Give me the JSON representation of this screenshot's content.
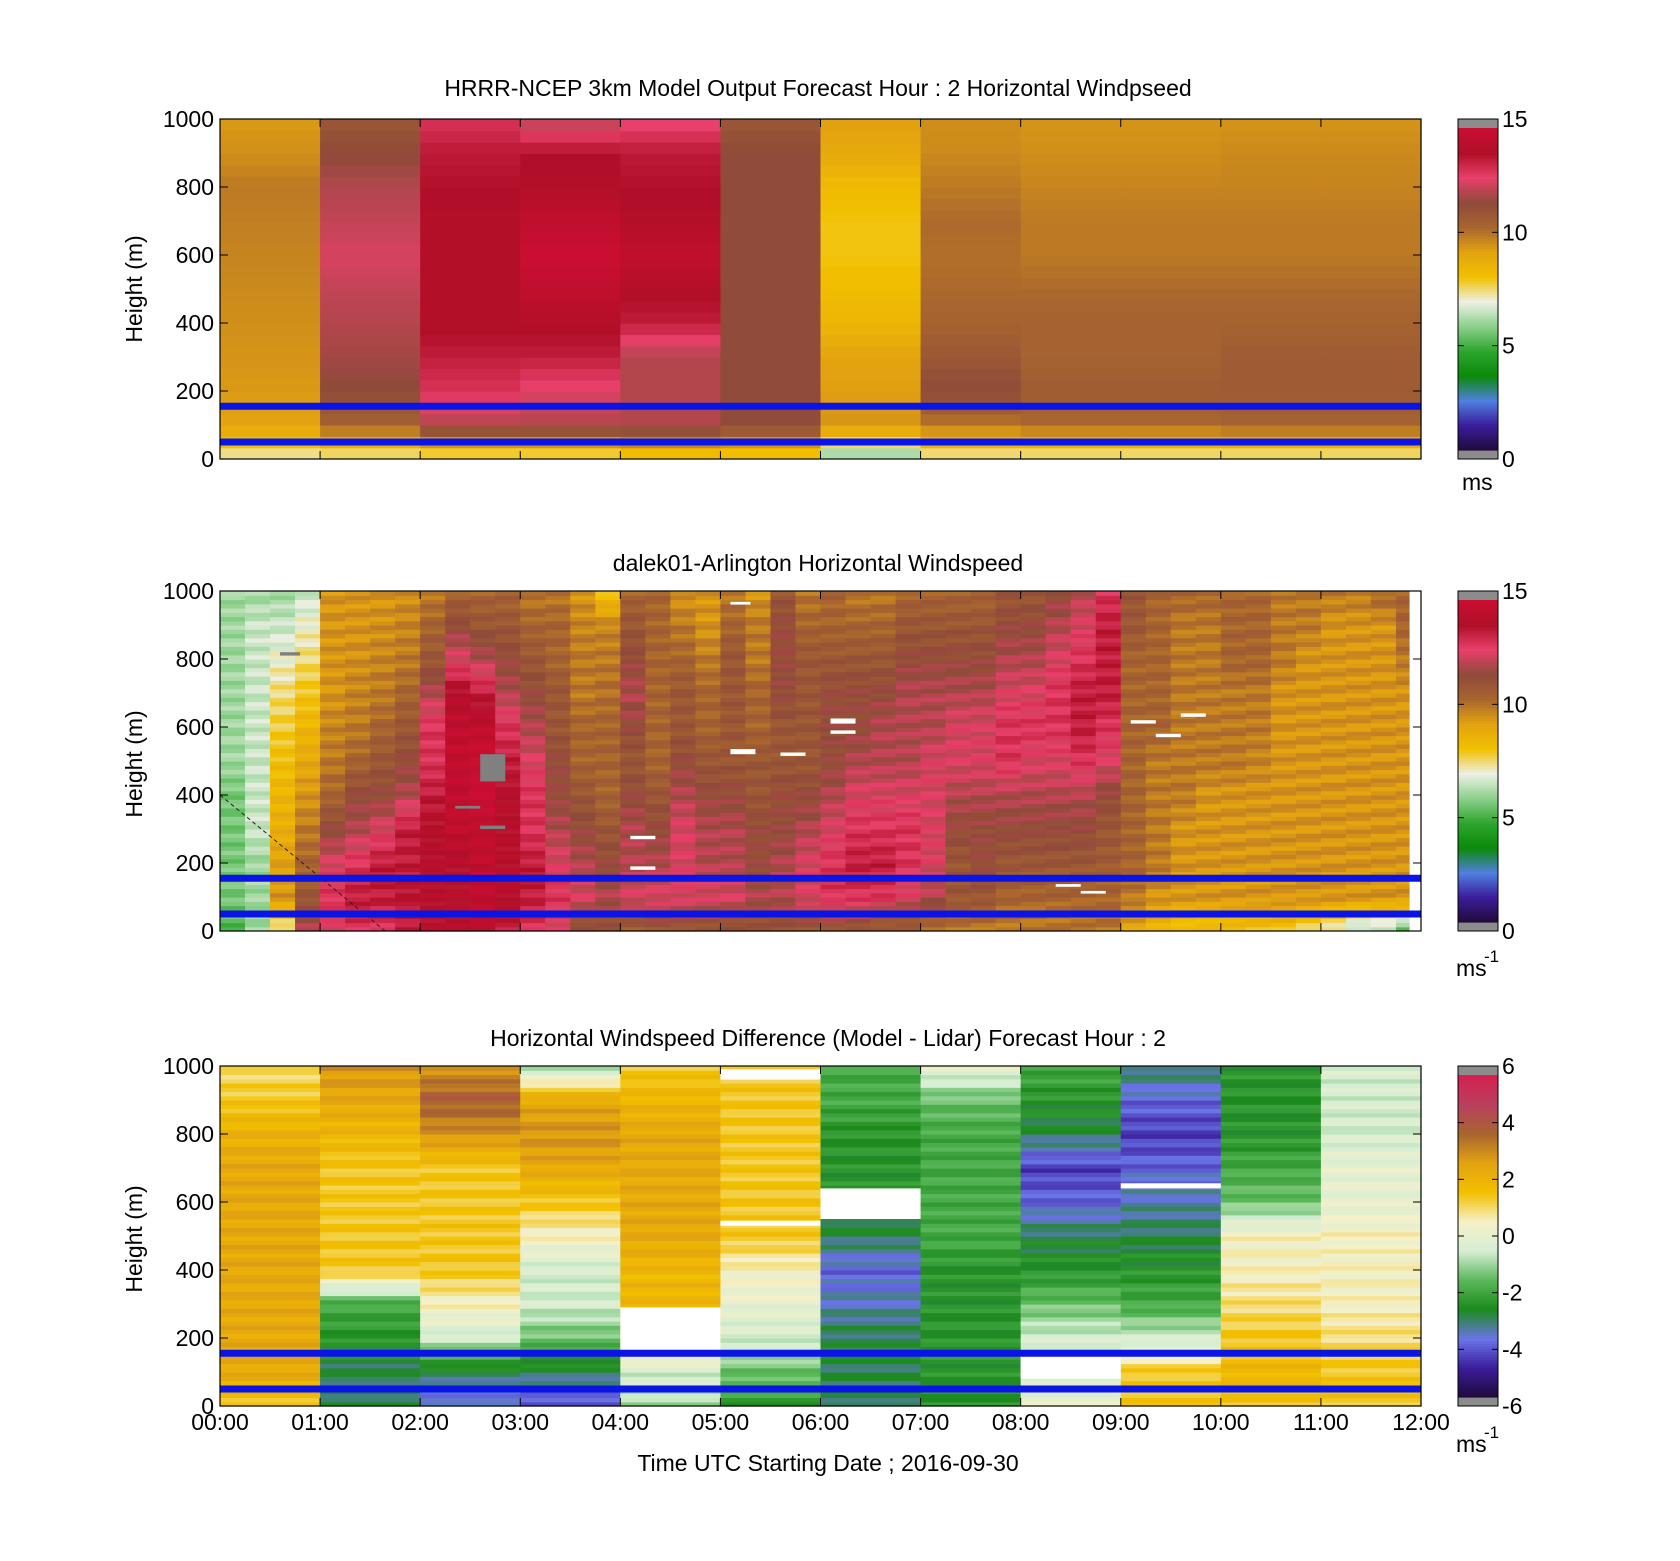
{
  "figure": {
    "xlabel": "Time UTC  Starting Date ; 2016-09-30",
    "x_tick_labels": [
      "00:00",
      "01:00",
      "02:00",
      "03:00",
      "04:00",
      "05:00",
      "06:00",
      "07:00",
      "08:00",
      "09:00",
      "10:00",
      "11:00",
      "12:00"
    ],
    "colors": {
      "reference_line": "#0a14e6",
      "missing_data": "#808080",
      "windspeed_scale": [
        "#1f0a3a",
        "#3b1c9a",
        "#4f7fe0",
        "#0a8a0a",
        "#2da52d",
        "#8cd08c",
        "#ecf0e4",
        "#f2c000",
        "#e3a310",
        "#a8652f",
        "#8f4a3a",
        "#e8406a",
        "#b00f28",
        "#cc0e33"
      ],
      "difference_scale": [
        "#1f0a3a",
        "#3b1c9a",
        "#6a75e8",
        "#1c8a1c",
        "#5ab85a",
        "#d6eed4",
        "#f6f0c8",
        "#f2c000",
        "#e3a310",
        "#a8652f",
        "#b8405e",
        "#d62050"
      ]
    }
  },
  "chart_data": [
    {
      "type": "heatmap",
      "title": "HRRR-NCEP 3km Model Output   Forecast Hour : 2 Horizontal Windpseed",
      "ylabel": "Height (m)",
      "ylim": [
        0,
        1000
      ],
      "xlim_hours": [
        0,
        12
      ],
      "y_ticks": [
        0,
        200,
        400,
        600,
        800,
        1000
      ],
      "colorbar": {
        "min": 0,
        "max": 15,
        "ticks": [
          0,
          5,
          10,
          15
        ],
        "unit": "ms",
        "unit_sup": ""
      },
      "reference_lines_m": [
        50,
        155
      ],
      "time_step_hours": 1,
      "heights_m": [
        0,
        100,
        200,
        300,
        400,
        500,
        600,
        700,
        800,
        900,
        1000
      ],
      "values_by_hour": [
        [
          7,
          9.2,
          9.4,
          9.5,
          9.6,
          9.7,
          9.8,
          9.9,
          10,
          9.6,
          9.4
        ],
        [
          7,
          10.5,
          11.5,
          11.8,
          12,
          12.2,
          12.5,
          12.2,
          12,
          11.5,
          11
        ],
        [
          7,
          12,
          13,
          13.5,
          14,
          14,
          14,
          14,
          13.8,
          13.6,
          13
        ],
        [
          7,
          12,
          12.5,
          13.5,
          14,
          14.5,
          15,
          14.5,
          14,
          13.8,
          12
        ],
        [
          7.5,
          12,
          12,
          12,
          13.5,
          14,
          14.5,
          14,
          13.8,
          13.6,
          12.5
        ],
        [
          7.5,
          11.5,
          11.5,
          11.5,
          11.5,
          11.5,
          11.5,
          11.5,
          11.5,
          11.5,
          11
        ],
        [
          5.5,
          9.5,
          9.3,
          9.2,
          8.5,
          8.2,
          8,
          8,
          8.3,
          9,
          9.3
        ],
        [
          7,
          10,
          11.5,
          11,
          10.5,
          10.3,
          10.2,
          10.3,
          10,
          9.7,
          9.6
        ],
        [
          7,
          10.3,
          10.8,
          10.5,
          10.5,
          10.3,
          10,
          10,
          9.8,
          9.6,
          9.5
        ],
        [
          7,
          10.3,
          10.8,
          10.5,
          10.5,
          10.3,
          10,
          10,
          9.8,
          9.6,
          9.5
        ],
        [
          7,
          10.5,
          10.8,
          10.8,
          10.5,
          10.3,
          10,
          10,
          9.8,
          9.7,
          9.5
        ],
        [
          7,
          10.5,
          10.8,
          10.8,
          10.5,
          10.3,
          10,
          10,
          9.8,
          9.7,
          9.5
        ]
      ]
    },
    {
      "type": "heatmap",
      "title": "dalek01-Arlington  Horizontal Windspeed",
      "ylabel": "Height (m)",
      "ylim": [
        0,
        1000
      ],
      "xlim_hours": [
        0,
        12
      ],
      "y_ticks": [
        0,
        200,
        400,
        600,
        800,
        1000
      ],
      "colorbar": {
        "min": 0,
        "max": 15,
        "ticks": [
          0,
          5,
          10,
          15
        ],
        "unit": "ms",
        "unit_sup": "-1"
      },
      "reference_lines_m": [
        50,
        155
      ],
      "time_step_hours": 0.25,
      "data_end_hour": 11.88,
      "heights_m": [
        0,
        100,
        200,
        300,
        400,
        500,
        600,
        700,
        800,
        900,
        1000
      ],
      "values_by_quarter_hour": [
        [
          5,
          5.5,
          5.5,
          5.5,
          5.5,
          6,
          6,
          6,
          6,
          6,
          6
        ],
        [
          6,
          6,
          6,
          6.5,
          6.5,
          6.5,
          6.5,
          6.5,
          6.5,
          6.5,
          6
        ],
        [
          7,
          9.5,
          9.2,
          8.8,
          8.5,
          8.2,
          7.8,
          7.5,
          7,
          6.5,
          6
        ],
        [
          12,
          11,
          10.5,
          10,
          9.5,
          9,
          8.5,
          8,
          7.5,
          7,
          6.5
        ],
        [
          12.5,
          13,
          12.5,
          11.5,
          10.5,
          10,
          9.8,
          9.5,
          9.5,
          9.5,
          9.5
        ],
        [
          13,
          13.5,
          13,
          12,
          11.5,
          10.5,
          10,
          9.8,
          9.6,
          9.5,
          9.5
        ],
        [
          13,
          13.5,
          13.5,
          12.5,
          11.5,
          11,
          10.5,
          10,
          9.8,
          9.6,
          9.5
        ],
        [
          13.5,
          13.8,
          13.5,
          13.5,
          12,
          11.5,
          11,
          10.5,
          10,
          9.8,
          9.6
        ],
        [
          14,
          14,
          14,
          14,
          13.5,
          13,
          13,
          12,
          11,
          10.5,
          10
        ],
        [
          14,
          14,
          14,
          14.5,
          14.5,
          14.5,
          14.5,
          14,
          12.5,
          11.5,
          10.5
        ],
        [
          14,
          14.5,
          14.5,
          14.5,
          15,
          15,
          14.5,
          13.5,
          12,
          11,
          10.5
        ],
        [
          13.5,
          14,
          14,
          14,
          14,
          13.5,
          13,
          12,
          11.5,
          11,
          10.5
        ],
        [
          13,
          13.5,
          13.5,
          13,
          13,
          12.5,
          12,
          11.5,
          11,
          10.5,
          10
        ],
        [
          12.5,
          13,
          12.5,
          12,
          11.5,
          11.5,
          11,
          11,
          10.5,
          10.5,
          10
        ],
        [
          11,
          12.5,
          12,
          11.5,
          11,
          10.5,
          10.5,
          10,
          10,
          9.8,
          9.5
        ],
        [
          11,
          12,
          11.5,
          11,
          10.5,
          10.5,
          10.5,
          10.2,
          10,
          9.8,
          8
        ],
        [
          10.5,
          12.5,
          12,
          12,
          11.5,
          11,
          11.5,
          12,
          11.5,
          11,
          10.5
        ],
        [
          11,
          12.5,
          12,
          11.5,
          11,
          10.5,
          10.5,
          10.5,
          10.5,
          10.5,
          10.5
        ],
        [
          11,
          12.5,
          12.5,
          12.5,
          12,
          11.5,
          11,
          11,
          10.5,
          10,
          9.5
        ],
        [
          11,
          12.5,
          12,
          12,
          11.5,
          11,
          10.5,
          10.5,
          10,
          9.5,
          9.5
        ],
        [
          11,
          12.5,
          12,
          12,
          11.5,
          11,
          11,
          11,
          11,
          10.5,
          10
        ],
        [
          11,
          12,
          11.5,
          11.5,
          11,
          11,
          10.5,
          10.5,
          10,
          10,
          9.5
        ],
        [
          11,
          12,
          12,
          11.5,
          11.5,
          11,
          11,
          11.5,
          11.5,
          11.5,
          11
        ],
        [
          11,
          12.5,
          12.5,
          12,
          11.5,
          11,
          11,
          11,
          11,
          10.5,
          10
        ],
        [
          11,
          13,
          13,
          12.5,
          12,
          11.5,
          11.5,
          11.5,
          11,
          10.5,
          10.5
        ],
        [
          11,
          13,
          13.5,
          13,
          12.5,
          12,
          11.5,
          11.5,
          11,
          10.5,
          10
        ],
        [
          10.5,
          13,
          13.5,
          13,
          12.5,
          12,
          12,
          11.5,
          11,
          10.5,
          10
        ],
        [
          10.5,
          12.5,
          13,
          13,
          12.5,
          12,
          12,
          12,
          11.5,
          11,
          10.5
        ],
        [
          10,
          12,
          12.5,
          12.5,
          12.5,
          12.5,
          12,
          12,
          11.5,
          11,
          10.5
        ],
        [
          10,
          11,
          11,
          11.5,
          12,
          12.5,
          12.5,
          12,
          11.5,
          11,
          10.5
        ],
        [
          10,
          11,
          11.5,
          11.5,
          12,
          12.5,
          12.5,
          12,
          11.5,
          11,
          10.5
        ],
        [
          10,
          10.5,
          11,
          11.5,
          12,
          13,
          13,
          12.5,
          12,
          11.5,
          11
        ],
        [
          10,
          10.5,
          11,
          11.5,
          12,
          12.5,
          13,
          12.5,
          12,
          11.5,
          11
        ],
        [
          10,
          10.5,
          11,
          11.5,
          12,
          12.5,
          13,
          13,
          12.5,
          12,
          11.5
        ],
        [
          10,
          10.5,
          11,
          11.5,
          12,
          13,
          13.5,
          13.5,
          13,
          12.5,
          12
        ],
        [
          10,
          10.5,
          10.8,
          11,
          11.5,
          12.5,
          13,
          13.5,
          13.5,
          13.5,
          13
        ],
        [
          9,
          10,
          10.5,
          10.5,
          10.5,
          10.5,
          10.5,
          10.5,
          10.5,
          11,
          11
        ],
        [
          8.5,
          9.5,
          10,
          10,
          10,
          10,
          10.5,
          10.5,
          10.5,
          10.5,
          10.5
        ],
        [
          8,
          9.5,
          9.5,
          9.5,
          10,
          10,
          10,
          10,
          10,
          10,
          10.5
        ],
        [
          8,
          9.5,
          9.5,
          9.5,
          9.5,
          10,
          10,
          10,
          10,
          10,
          10.5
        ],
        [
          8,
          9.5,
          9.5,
          9.5,
          9.5,
          10,
          10,
          10,
          10.5,
          10.5,
          10.5
        ],
        [
          8,
          9.5,
          9.5,
          9.5,
          9.5,
          9.8,
          10,
          10,
          10.5,
          10.5,
          10.5
        ],
        [
          8,
          9.5,
          9.5,
          9.5,
          9.5,
          9.5,
          9.5,
          9.5,
          10,
          10,
          10
        ],
        [
          7.5,
          9.5,
          9.5,
          9.5,
          9.5,
          9.5,
          9.5,
          9.5,
          9.5,
          10,
          10
        ],
        [
          7,
          9.5,
          9.5,
          9.5,
          9.5,
          9.5,
          9.5,
          9.5,
          9.5,
          9.5,
          10
        ],
        [
          6,
          9.5,
          9.5,
          9.5,
          9.5,
          9.5,
          9.5,
          9.5,
          9.5,
          9.5,
          10
        ],
        [
          6,
          9.5,
          9.5,
          9.5,
          9.5,
          9.5,
          9.5,
          9.5,
          9.5,
          9.5,
          10.5
        ],
        [
          5,
          9.5,
          9.5,
          9.5,
          9.5,
          9.5,
          9.5,
          9.5,
          10,
          10.5,
          10.5
        ]
      ],
      "missing_segments": [
        {
          "t0": 2.6,
          "t1": 2.85,
          "h0": 440,
          "h1": 520
        },
        {
          "t0": 0.6,
          "t1": 0.8,
          "h0": 810,
          "h1": 820
        },
        {
          "t0": 2.35,
          "t1": 2.6,
          "h0": 360,
          "h1": 368
        },
        {
          "t0": 2.6,
          "t1": 2.85,
          "h0": 300,
          "h1": 310
        }
      ],
      "blank_segments": [
        {
          "t0": 4.1,
          "t1": 4.35,
          "h0": 270,
          "h1": 280
        },
        {
          "t0": 4.1,
          "t1": 4.35,
          "h0": 180,
          "h1": 190
        },
        {
          "t0": 5.1,
          "t1": 5.35,
          "h0": 520,
          "h1": 535
        },
        {
          "t0": 5.6,
          "t1": 5.85,
          "h0": 515,
          "h1": 525
        },
        {
          "t0": 6.1,
          "t1": 6.35,
          "h0": 610,
          "h1": 625
        },
        {
          "t0": 6.1,
          "t1": 6.35,
          "h0": 580,
          "h1": 590
        },
        {
          "t0": 8.6,
          "t1": 8.85,
          "h0": 110,
          "h1": 118
        },
        {
          "t0": 8.35,
          "t1": 8.6,
          "h0": 130,
          "h1": 138
        },
        {
          "t0": 9.1,
          "t1": 9.35,
          "h0": 610,
          "h1": 620
        },
        {
          "t0": 9.35,
          "t1": 9.6,
          "h0": 570,
          "h1": 580
        },
        {
          "t0": 9.6,
          "t1": 9.85,
          "h0": 630,
          "h1": 640
        },
        {
          "t0": 5.1,
          "t1": 5.3,
          "h0": 960,
          "h1": 968
        }
      ],
      "guide_line": {
        "from": {
          "t": 0,
          "h": 400
        },
        "to": {
          "t": 1.65,
          "h": 0
        }
      }
    },
    {
      "type": "heatmap",
      "title": "Horizontal Windspeed Difference (Model - Lidar) Forecast Hour : 2",
      "ylabel": "Height (m)",
      "ylim": [
        0,
        1000
      ],
      "xlim_hours": [
        0,
        12
      ],
      "y_ticks": [
        0,
        200,
        400,
        600,
        800,
        1000
      ],
      "colorbar": {
        "min": -6,
        "max": 6,
        "ticks": [
          -6,
          -4,
          -2,
          0,
          2,
          4,
          6
        ],
        "unit": "ms",
        "unit_sup": "-1"
      },
      "reference_lines_m": [
        50,
        155
      ],
      "time_step_hours": 1,
      "heights_m": [
        0,
        100,
        200,
        300,
        400,
        500,
        600,
        700,
        800,
        900,
        1000
      ],
      "values_by_hour": [
        [
          1.5,
          2.5,
          2.5,
          2.5,
          2.5,
          2.5,
          2.5,
          2.5,
          2.2,
          1.5,
          1
        ],
        [
          -3,
          -3,
          -2.5,
          -2,
          1.5,
          1.5,
          1.5,
          1.5,
          2,
          2.5,
          3
        ],
        [
          -4,
          -3,
          -0.5,
          0.5,
          1.5,
          1.5,
          1.5,
          1.5,
          3,
          4,
          3
        ],
        [
          -4.5,
          -3,
          -1.5,
          -0.5,
          -0.5,
          0.5,
          1.5,
          2.5,
          3,
          2.5,
          -1
        ],
        [
          -1,
          -0.5,
          1.5,
          2,
          2,
          2.5,
          2.5,
          2.5,
          2.5,
          2,
          1.5
        ],
        [
          -2.5,
          -1.5,
          -0.5,
          0,
          0.5,
          1.5,
          1.5,
          1.5,
          1.5,
          1.5,
          1.5
        ],
        [
          -3,
          -3,
          -3,
          -3.5,
          -4,
          -3,
          -2.5,
          -2.5,
          -2.5,
          -2,
          -2
        ],
        [
          -2.5,
          -2.5,
          -2.5,
          -2.5,
          -2.5,
          -2,
          -2,
          -2,
          -2,
          -1.5,
          0
        ],
        [
          0,
          0,
          -0.5,
          -1.5,
          -2.5,
          -3,
          -4,
          -4.5,
          -3,
          -2.5,
          -2
        ],
        [
          1.5,
          1.5,
          -0.5,
          -2,
          -2.5,
          -3,
          -3.5,
          -4,
          -4.5,
          -4,
          -3
        ],
        [
          1.5,
          2,
          1.5,
          1,
          0.5,
          0.5,
          -1.5,
          -2,
          -2.5,
          -2.5,
          -2.5
        ],
        [
          1.5,
          1.5,
          1,
          0.5,
          0.5,
          0.5,
          0,
          0,
          -0.5,
          -0.5,
          -0.5
        ]
      ],
      "blank_segments": [
        {
          "t0": 4,
          "t1": 5,
          "h0": 160,
          "h1": 290
        },
        {
          "t0": 5,
          "t1": 6,
          "h0": 530,
          "h1": 545
        },
        {
          "t0": 5,
          "t1": 6,
          "h0": 960,
          "h1": 990
        },
        {
          "t0": 6,
          "t1": 7,
          "h0": 550,
          "h1": 640
        },
        {
          "t0": 8,
          "t1": 9,
          "h0": 80,
          "h1": 150
        },
        {
          "t0": 9,
          "t1": 10,
          "h0": 640,
          "h1": 655
        }
      ]
    }
  ]
}
